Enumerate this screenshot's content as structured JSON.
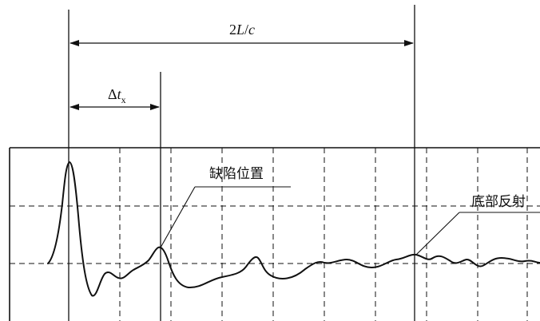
{
  "annotations": {
    "total_interval": {
      "main": "2",
      "italic_l": "L",
      "slash": "/",
      "italic_c": "c"
    },
    "defect_interval": {
      "delta": "Δ",
      "italic_t": "t",
      "subscript": "x"
    },
    "defect_label": "缺陷位置",
    "bottom_label": "底部反射"
  },
  "colors": {
    "line": "#111111",
    "background": "#ffffff"
  }
}
